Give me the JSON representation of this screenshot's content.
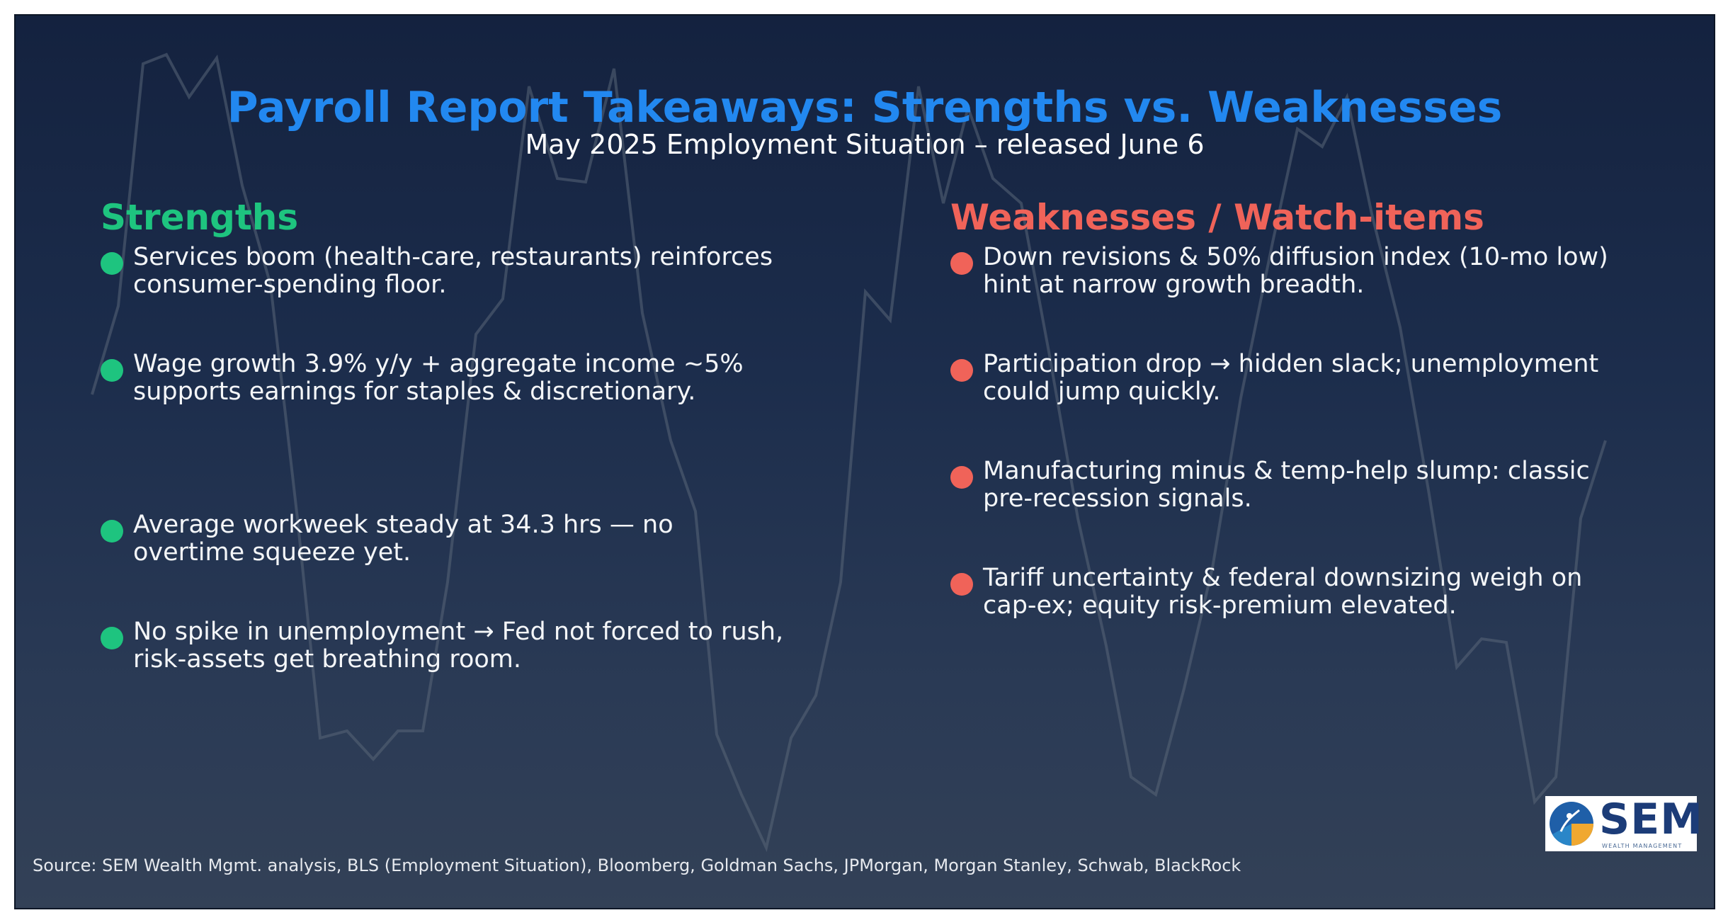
{
  "header": {
    "title": "Payroll Report Takeaways: Strengths vs. Weaknesses",
    "subtitle": "May 2025 Employment Situation – released June 6"
  },
  "strengths": {
    "heading": "Strengths",
    "items": [
      "Services boom (health-care, restaurants) reinforces consumer-spending floor.",
      "Wage growth 3.9% y/y + aggregate income ~5% supports earnings for staples & discretionary.",
      "Average workweek steady at 34.3 hrs — no overtime squeeze yet.",
      "No spike in unemployment → Fed not forced to rush, risk-assets get breathing room."
    ]
  },
  "weaknesses": {
    "heading": "Weaknesses / Watch-items",
    "items": [
      "Down revisions & 50% diffusion index (10-mo low) hint at narrow growth breadth.",
      "Participation drop → hidden slack; unemployment could jump quickly.",
      "Manufacturing minus & temp-help slump: classic pre-recession signals.",
      "Tariff uncertainty & federal downsizing weigh on cap-ex; equity risk-premium elevated."
    ]
  },
  "footer": {
    "source": "Source: SEM Wealth Mgmt. analysis, BLS (Employment Situation), Bloomberg, Goldman Sachs, JPMorgan, Morgan Stanley, Schwab, BlackRock"
  },
  "logo": {
    "name": "SEM",
    "tagline": "WEALTH MANAGEMENT"
  },
  "colors": {
    "title": "#2288f0",
    "strengths": "#1ec47f",
    "weaknesses": "#f06359",
    "background_top": "#14223f",
    "background_bottom": "#334157"
  }
}
